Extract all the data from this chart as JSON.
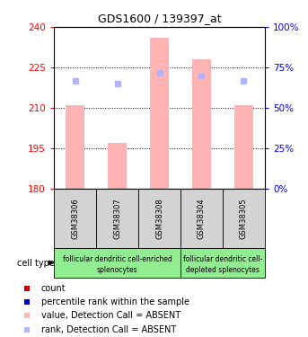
{
  "title": "GDS1600 / 139397_at",
  "samples": [
    "GSM38306",
    "GSM38307",
    "GSM38308",
    "GSM38304",
    "GSM38305"
  ],
  "bar_values": [
    211,
    197,
    236,
    228,
    211
  ],
  "bar_base": 180,
  "rank_values": [
    220,
    219,
    223,
    222,
    220
  ],
  "ylim_left": [
    180,
    240
  ],
  "ylim_right": [
    0,
    100
  ],
  "yticks_left": [
    180,
    195,
    210,
    225,
    240
  ],
  "yticks_right": [
    0,
    25,
    50,
    75,
    100
  ],
  "bar_color": "#ffb3b3",
  "rank_color": "#b3b3ff",
  "bar_width": 0.45,
  "grid_lines": [
    195,
    210,
    225
  ],
  "sample_bg": "#d3d3d3",
  "group1_color": "#90ee90",
  "group2_color": "#90ee90",
  "group1_label_line1": "follicular dendritic cell-enriched",
  "group1_label_line2": "splenocytes",
  "group2_label_line1": "follicular dendritic cell-",
  "group2_label_line2": "depleted splenocytes",
  "legend_items": [
    {
      "color": "#cc0000",
      "label": "count"
    },
    {
      "color": "#0000cc",
      "label": "percentile rank within the sample"
    },
    {
      "color": "#ffb3b3",
      "label": "value, Detection Call = ABSENT"
    },
    {
      "color": "#b3b3ff",
      "label": "rank, Detection Call = ABSENT"
    }
  ]
}
